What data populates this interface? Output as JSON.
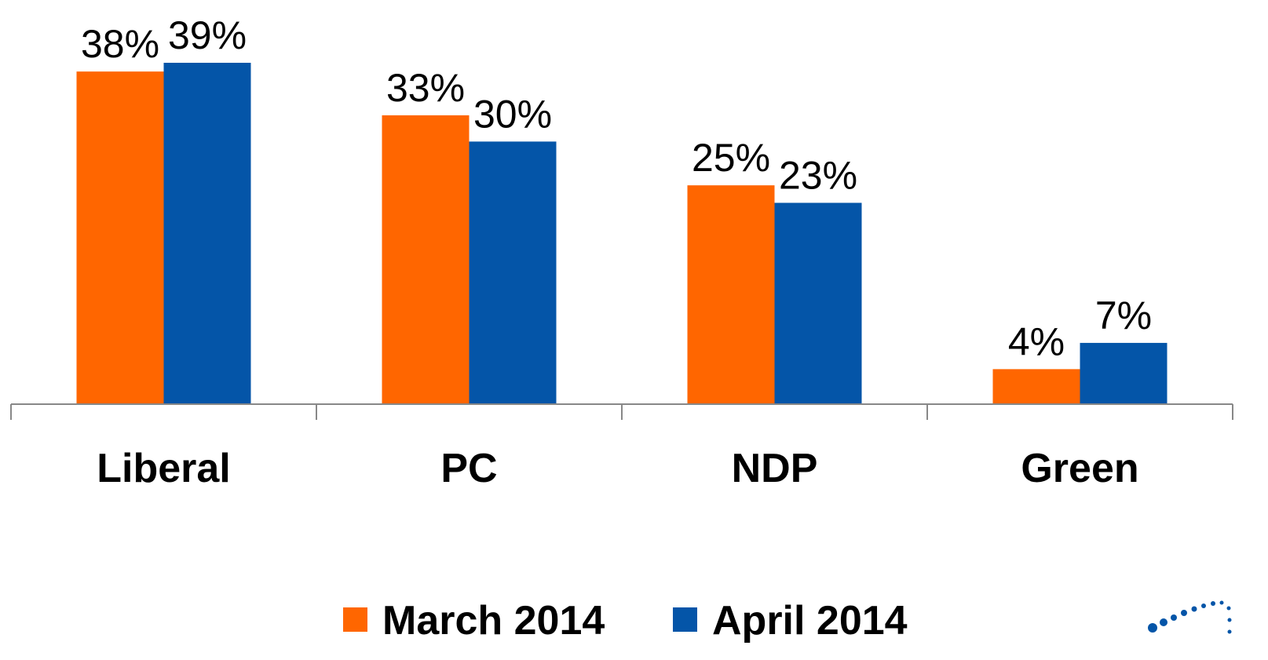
{
  "chart_data": {
    "type": "bar",
    "categories": [
      "Liberal",
      "PC",
      "NDP",
      "Green"
    ],
    "series": [
      {
        "name": "March 2014",
        "color": "#ff6600",
        "values": [
          38,
          33,
          25,
          4
        ],
        "value_labels": [
          "38%",
          "33%",
          "25%",
          "4%"
        ]
      },
      {
        "name": "April 2014",
        "color": "#0455a8",
        "values": [
          39,
          30,
          23,
          7
        ],
        "value_labels": [
          "39%",
          "30%",
          "23%",
          "7%"
        ]
      }
    ],
    "legend": "bottom"
  }
}
